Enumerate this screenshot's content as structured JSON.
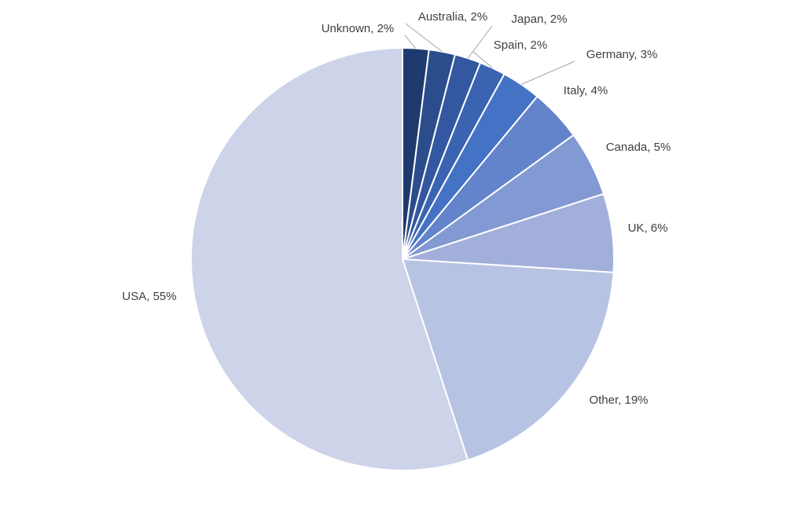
{
  "chart_data": {
    "type": "pie",
    "values": [
      2,
      2,
      2,
      2,
      3,
      4,
      5,
      6,
      19,
      55
    ],
    "value_labels": [
      "Unknown, 2%",
      "Australia, 2%",
      "Japan, 2%",
      "Spain, 2%",
      "Germany, 3%",
      "Italy, 4%",
      "Canada, 5%",
      "UK, 6%",
      "Other, 19%",
      "USA, 55%"
    ],
    "colors": [
      "#1f3a6e",
      "#2c4d8c",
      "#3357a0",
      "#3a63b2",
      "#4472c4",
      "#6383cb",
      "#8399d3",
      "#a1afda",
      "#b7c3e2",
      "#cdd3e8"
    ]
  }
}
